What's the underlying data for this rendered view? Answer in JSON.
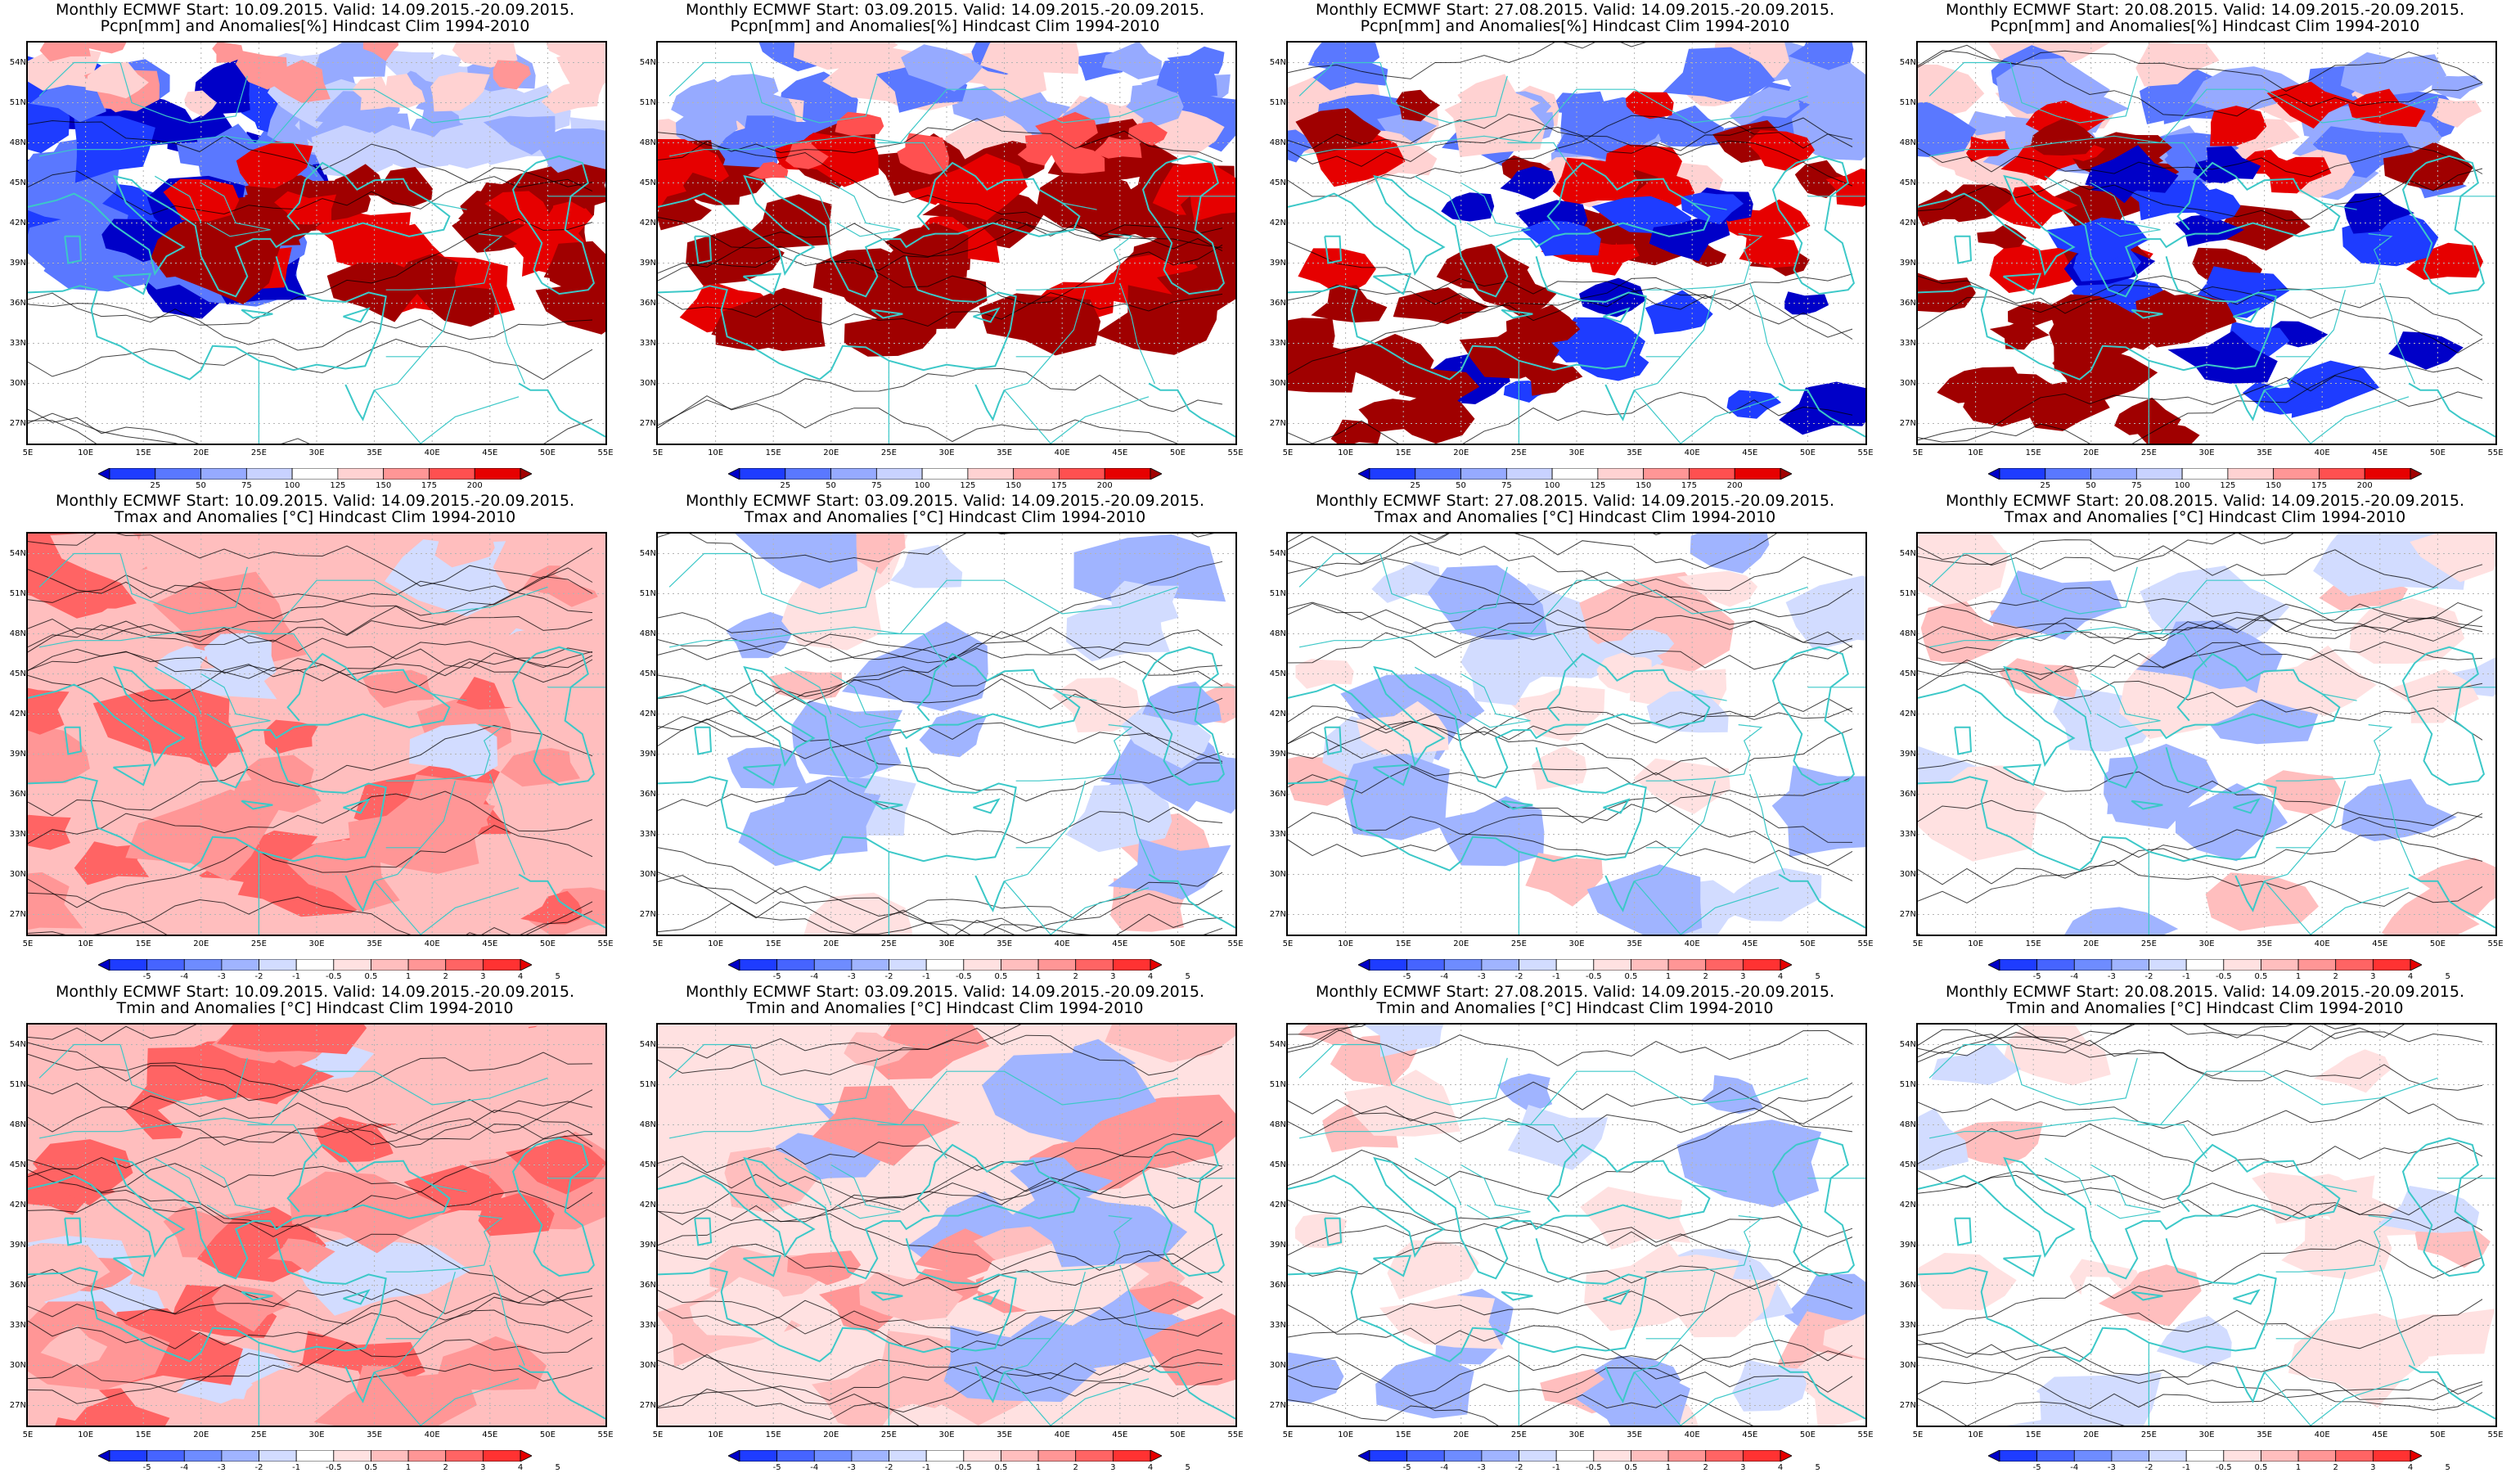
{
  "panels": [
    {
      "id": "r0c0",
      "row": 0,
      "col": 0,
      "title": "Monthly ECMWF Start: 10.09.2015. Valid: 14.09.2015.-20.09.2015.",
      "subtitle": "Pcpn[mm] and Anomalies[%] Hindcast Clim 1994-2010",
      "variable": "precip",
      "style": "wet-west"
    },
    {
      "id": "r0c1",
      "row": 0,
      "col": 1,
      "title": "Monthly ECMWF Start: 03.09.2015. Valid: 14.09.2015.-20.09.2015.",
      "subtitle": "Pcpn[mm] and Anomalies[%] Hindcast Clim 1994-2010",
      "variable": "precip",
      "style": "dry-south"
    },
    {
      "id": "r0c2",
      "row": 0,
      "col": 2,
      "title": "Monthly ECMWF Start: 27.08.2015. Valid: 14.09.2015.-20.09.2015.",
      "subtitle": "Pcpn[mm] and Anomalies[%] Hindcast Clim 1994-2010",
      "variable": "precip",
      "style": "mixed"
    },
    {
      "id": "r0c3",
      "row": 0,
      "col": 3,
      "title": "Monthly ECMWF Start: 20.08.2015. Valid: 14.09.2015.-20.09.2015.",
      "subtitle": "Pcpn[mm] and Anomalies[%] Hindcast Clim 1994-2010",
      "variable": "precip",
      "style": "mixed"
    },
    {
      "id": "r1c0",
      "row": 1,
      "col": 0,
      "title": "Monthly ECMWF Start: 10.09.2015. Valid: 14.09.2015.-20.09.2015.",
      "subtitle": "Tmax and Anomalies [°C] Hindcast Clim 1994-2010",
      "variable": "temp",
      "style": "warm-strong"
    },
    {
      "id": "r1c1",
      "row": 1,
      "col": 1,
      "title": "Monthly ECMWF Start: 03.09.2015. Valid: 14.09.2015.-20.09.2015.",
      "subtitle": "Tmax and Anomalies [°C] Hindcast Clim 1994-2010",
      "variable": "temp",
      "style": "warm-weak"
    },
    {
      "id": "r1c2",
      "row": 1,
      "col": 2,
      "title": "Monthly ECMWF Start: 27.08.2015. Valid: 14.09.2015.-20.09.2015.",
      "subtitle": "Tmax and Anomalies [°C] Hindcast Clim 1994-2010",
      "variable": "temp",
      "style": "warm-weak"
    },
    {
      "id": "r1c3",
      "row": 1,
      "col": 3,
      "title": "Monthly ECMWF Start: 20.08.2015. Valid: 14.09.2015.-20.09.2015.",
      "subtitle": "Tmax and Anomalies [°C] Hindcast Clim 1994-2010",
      "variable": "temp",
      "style": "warm-weak"
    },
    {
      "id": "r2c0",
      "row": 2,
      "col": 0,
      "title": "Monthly ECMWF Start: 10.09.2015. Valid: 14.09.2015.-20.09.2015.",
      "subtitle": "Tmin and Anomalies [°C] Hindcast Clim 1994-2010",
      "variable": "temp",
      "style": "warm-strong"
    },
    {
      "id": "r2c1",
      "row": 2,
      "col": 1,
      "title": "Monthly ECMWF Start: 03.09.2015. Valid: 14.09.2015.-20.09.2015.",
      "subtitle": "Tmin and Anomalies [°C] Hindcast Clim 1994-2010",
      "variable": "temp",
      "style": "warm-mid"
    },
    {
      "id": "r2c2",
      "row": 2,
      "col": 2,
      "title": "Monthly ECMWF Start: 27.08.2015. Valid: 14.09.2015.-20.09.2015.",
      "subtitle": "Tmin and Anomalies [°C] Hindcast Clim 1994-2010",
      "variable": "temp",
      "style": "warm-weak"
    },
    {
      "id": "r2c3",
      "row": 2,
      "col": 3,
      "title": "Monthly ECMWF Start: 20.08.2015. Valid: 14.09.2015.-20.09.2015.",
      "subtitle": "Tmin and Anomalies [°C] Hindcast Clim 1994-2010",
      "variable": "temp",
      "style": "neutral"
    }
  ],
  "lat_labels": [
    "54N",
    "51N",
    "48N",
    "45N",
    "42N",
    "39N",
    "36N",
    "33N",
    "30N",
    "27N"
  ],
  "lon_labels": [
    "5E",
    "10E",
    "15E",
    "20E",
    "25E",
    "30E",
    "35E",
    "40E",
    "45E",
    "50E",
    "55E"
  ],
  "precip_colorbar": {
    "labels": [
      "25",
      "50",
      "75",
      "100",
      "125",
      "150",
      "175",
      "200"
    ],
    "colors": [
      "#0000c8",
      "#1e3cff",
      "#5a78ff",
      "#96aaff",
      "#c8d2ff",
      "#ffffff",
      "#ffd2d2",
      "#ff9696",
      "#ff5050",
      "#e60000",
      "#a00000"
    ]
  },
  "temp_colorbar": {
    "labels": [
      "-5",
      "-4",
      "-3",
      "-2",
      "-1",
      "-0.5",
      "0.5",
      "1",
      "2",
      "3",
      "4",
      "5"
    ],
    "colors": [
      "#0000c8",
      "#1e3cff",
      "#4664ff",
      "#6e8cff",
      "#a0b4ff",
      "#d2dcff",
      "#ffffff",
      "#ffe1e1",
      "#ffbebe",
      "#ff9696",
      "#ff6464",
      "#ff3232",
      "#e60000"
    ]
  },
  "colors": {
    "coast": "#3cc8c8",
    "contour": "#000000",
    "grid": "#b4b4b4",
    "frame": "#000000"
  }
}
